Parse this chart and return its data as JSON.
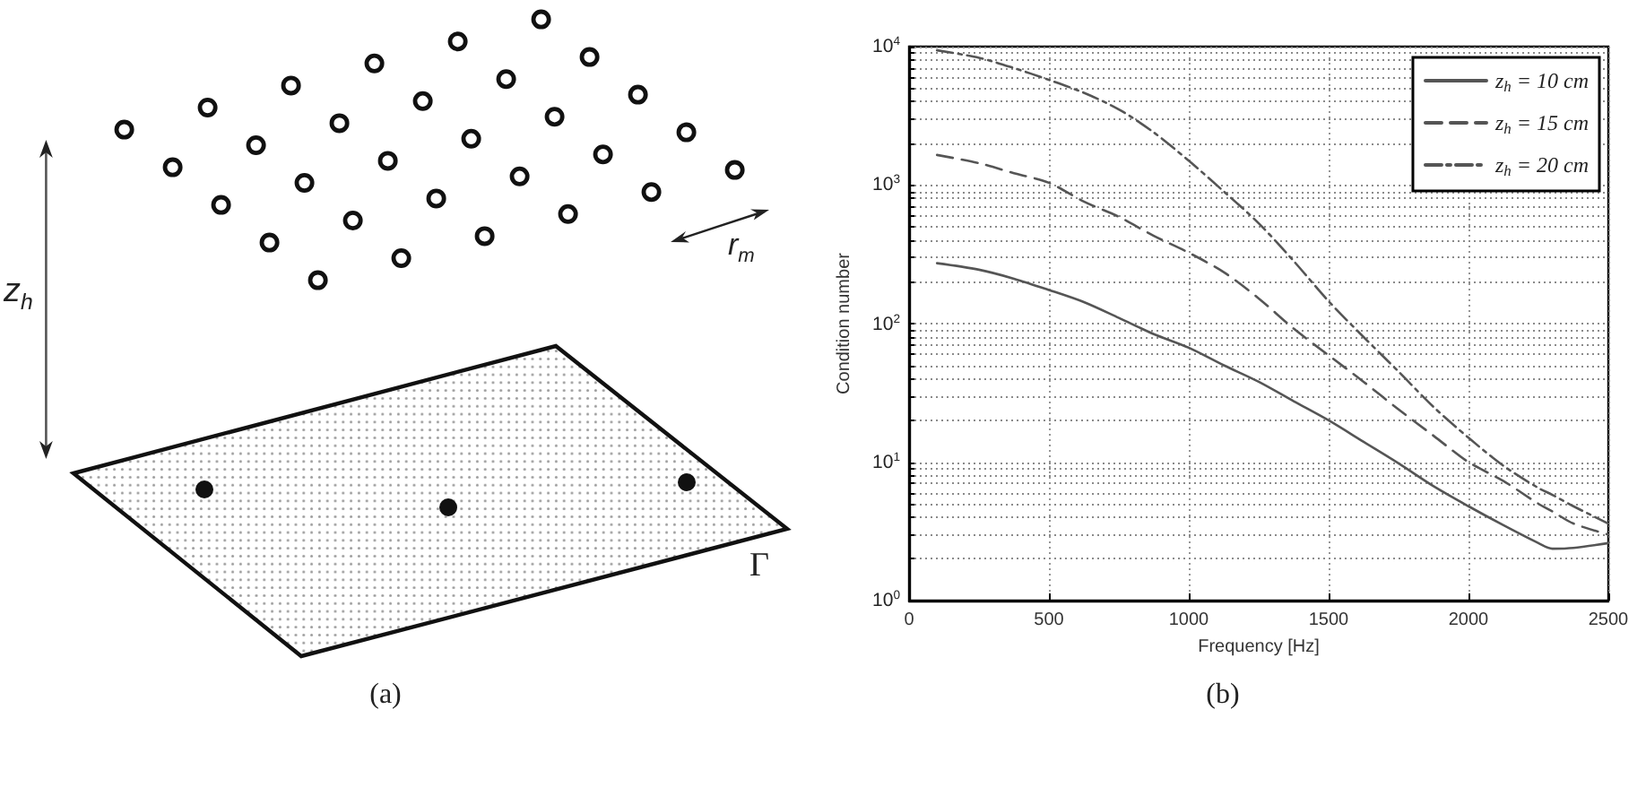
{
  "chart_data": [
    {
      "type": "other",
      "annotations": [
        "z$_{h}$",
        "r$_{m}$",
        "Γ",
        "(a)"
      ]
    },
    {
      "type": "line",
      "xlabel": "Frequency [Hz]",
      "ylabel": "Condition number",
      "annotations": [
        "(b)"
      ],
      "x": [
        100,
        250,
        375,
        500,
        625,
        750,
        875,
        1000,
        1125,
        1250,
        1375,
        1500,
        1625,
        1750,
        1875,
        2000,
        2125,
        2250,
        2300,
        2375,
        2500
      ],
      "series": [
        {
          "name": "z$_{h}$ = 10 cm",
          "color": "#555555",
          "line_style": "solid",
          "values": [
            273,
            245,
            211,
            175,
            143,
            110,
            84,
            67,
            50,
            38,
            27.5,
            20,
            14,
            9.8,
            6.7,
            4.8,
            3.5,
            2.6,
            2.37,
            2.4,
            2.6
          ]
        },
        {
          "name": "z$_{h}$ = 15 cm",
          "color": "#555555",
          "line_style": "dashed",
          "values": [
            1650,
            1440,
            1220,
            1040,
            760,
            590,
            430,
            325,
            235,
            152,
            92,
            59,
            38,
            24,
            15.5,
            10,
            7.3,
            5.0,
            4.4,
            3.6,
            3.0
          ]
        },
        {
          "name": "z$_{h}$ = 20 cm",
          "color": "#555555",
          "line_style": "dashdot",
          "values": [
            9400,
            8300,
            7000,
            5750,
            4640,
            3520,
            2400,
            1500,
            900,
            530,
            283,
            145,
            80,
            45,
            25,
            15,
            9.4,
            6.5,
            5.8,
            4.8,
            3.6
          ]
        }
      ],
      "xlim": [
        0,
        2500
      ],
      "xticks": [
        0,
        500,
        1000,
        1500,
        2000,
        2500
      ],
      "ylim": [
        1,
        10000
      ],
      "yticks": [
        {
          "value": 1,
          "label": "10$^{0}$"
        },
        {
          "value": 2,
          "label": null
        },
        {
          "value": 3,
          "label": null
        },
        {
          "value": 4,
          "label": null
        },
        {
          "value": 5,
          "label": null
        },
        {
          "value": 6,
          "label": null
        },
        {
          "value": 7,
          "label": null
        },
        {
          "value": 8,
          "label": null
        },
        {
          "value": 9,
          "label": null
        },
        {
          "value": 10,
          "label": "10$^{1}$"
        },
        {
          "value": 20,
          "label": null
        },
        {
          "value": 30,
          "label": null
        },
        {
          "value": 40,
          "label": null
        },
        {
          "value": 50,
          "label": null
        },
        {
          "value": 60,
          "label": null
        },
        {
          "value": 70,
          "label": null
        },
        {
          "value": 80,
          "label": null
        },
        {
          "value": 90,
          "label": null
        },
        {
          "value": 100,
          "label": "10$^{2}$"
        },
        {
          "value": 200,
          "label": null
        },
        {
          "value": 300,
          "label": null
        },
        {
          "value": 400,
          "label": null
        },
        {
          "value": 500,
          "label": null
        },
        {
          "value": 600,
          "label": null
        },
        {
          "value": 700,
          "label": null
        },
        {
          "value": 800,
          "label": null
        },
        {
          "value": 900,
          "label": null
        },
        {
          "value": 1000,
          "label": "10$^{3}$"
        },
        {
          "value": 2000,
          "label": null
        },
        {
          "value": 3000,
          "label": null
        },
        {
          "value": 4000,
          "label": null
        },
        {
          "value": 5000,
          "label": null
        },
        {
          "value": 6000,
          "label": null
        },
        {
          "value": 7000,
          "label": null
        },
        {
          "value": 8000,
          "label": null
        },
        {
          "value": 9000,
          "label": null
        },
        {
          "value": 10000,
          "label": "10$^{4}$"
        }
      ],
      "log": "y",
      "grid": true,
      "legend": "top right"
    }
  ]
}
